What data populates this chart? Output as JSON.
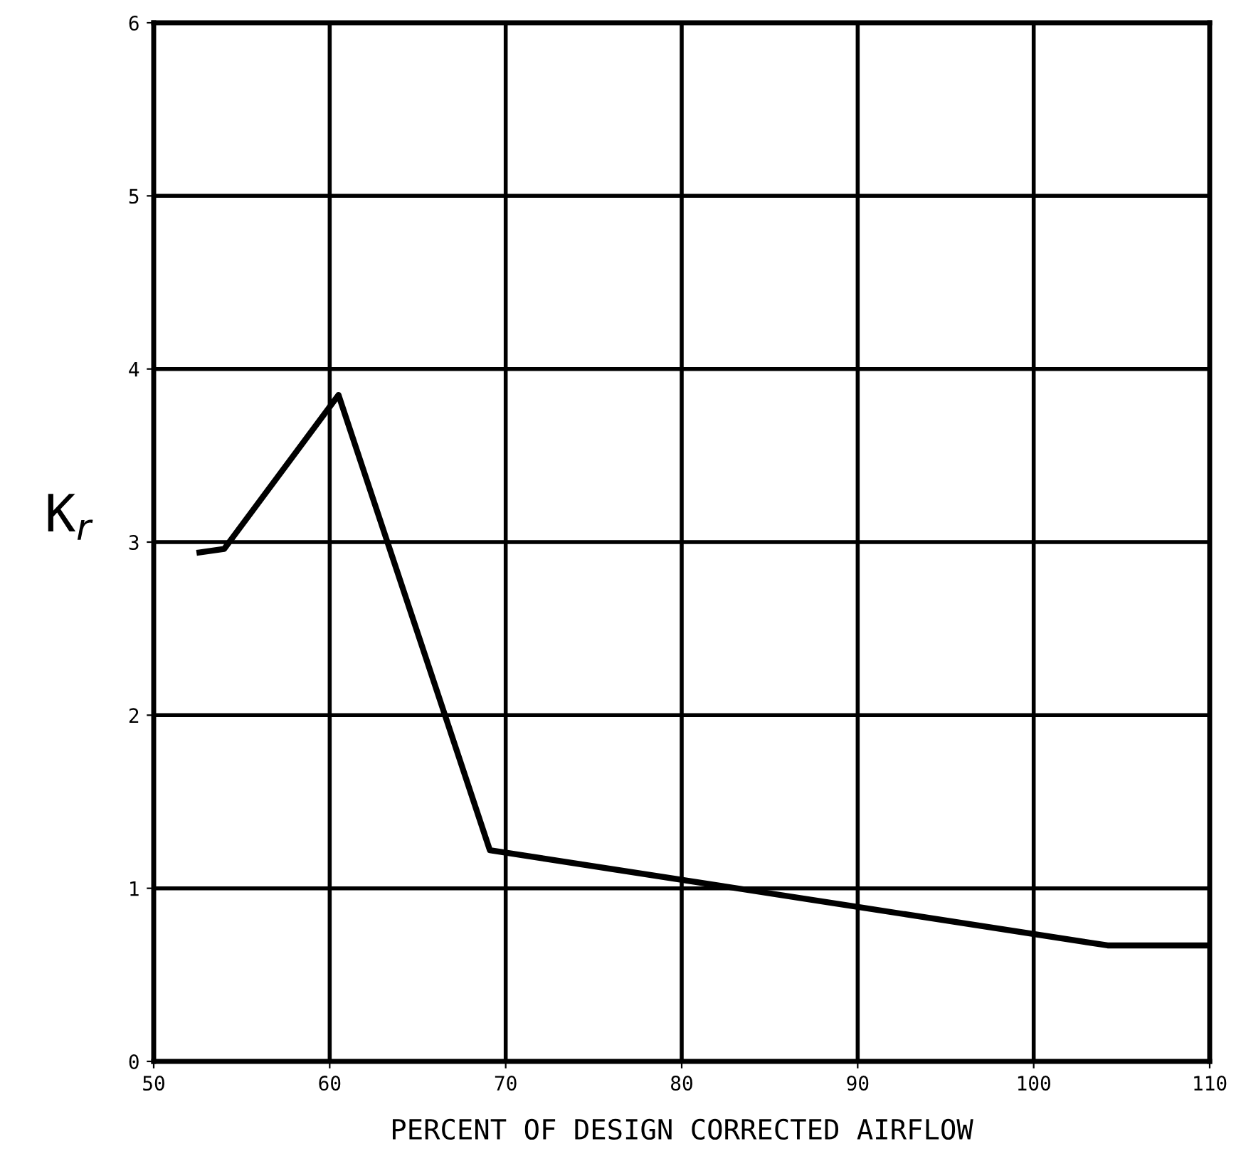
{
  "chart_data": {
    "type": "line",
    "xlabel": "PERCENT OF DESIGN CORRECTED AIRFLOW",
    "ylabel": "K$_{r}$",
    "series": [
      {
        "color": "#000000",
        "x": [
          52.6,
          54.0,
          60.5,
          69.1,
          104.2,
          110
        ],
        "values": [
          2.94,
          2.96,
          3.85,
          1.22,
          0.67,
          0.67
        ]
      }
    ],
    "xlim": [
      50,
      110
    ],
    "xticks": [
      50,
      60,
      70,
      80,
      90,
      100,
      110
    ],
    "ylim": [
      0,
      6
    ],
    "yticks": [
      0,
      1,
      2,
      3,
      4,
      5,
      6
    ],
    "grid": true,
    "marker": "none",
    "line_style": "solid"
  }
}
